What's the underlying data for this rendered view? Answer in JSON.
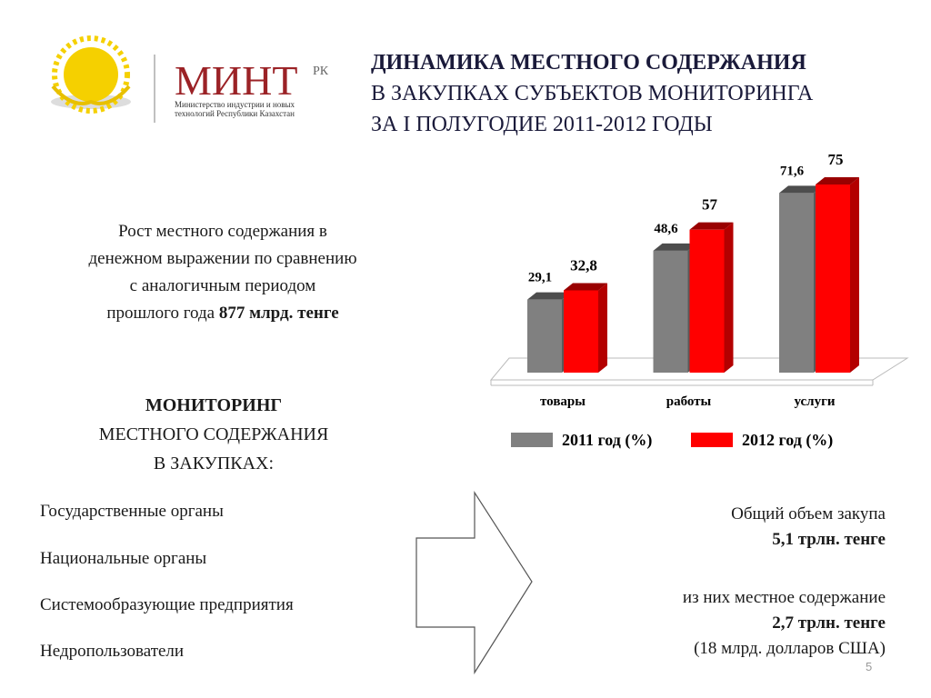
{
  "logo": {
    "name": "МИНТ",
    "suffix": "РК",
    "caption": [
      "Министерство индустрии и новых",
      "технологий Республики Казахстан"
    ]
  },
  "title": [
    "ДИНАМИКА МЕСТНОГО СОДЕРЖАНИЯ",
    "В ЗАКУПКАХ СУБЪЕКТОВ МОНИТОРИНГА",
    "ЗА I ПОЛУГОДИЕ 2011-2012 ГОДЫ"
  ],
  "growth": {
    "lines": [
      "Рост местного содержания в",
      "денежном выражении по сравнению",
      "с аналогичным периодом",
      "прошлого года"
    ],
    "amount": "877 млрд. тенге"
  },
  "monitoring": {
    "heading": "МОНИТОРИНГ",
    "lines": [
      "МЕСТНОГО СОДЕРЖАНИЯ",
      "В ЗАКУПКАХ:"
    ]
  },
  "participants": [
    "Государственные органы",
    "Национальные органы",
    "Системообразующие предприятия",
    "Недропользователи"
  ],
  "totals": [
    {
      "label": "Общий объем закупа",
      "amount": "5,1 трлн. тенге"
    },
    {
      "label": "из них местное содержание",
      "amount": "2,7 трлн. тенге",
      "note": "(18 млрд. долларов США)"
    }
  ],
  "page_number": "5",
  "chart_data": {
    "type": "bar3d",
    "categories": [
      "товары",
      "работы",
      "услуги"
    ],
    "series": [
      {
        "name": "2011 год (%)",
        "color": "#808080",
        "values": [
          29.1,
          48.6,
          71.6
        ],
        "value_labels": [
          "29,1",
          "48,6",
          "71,6"
        ]
      },
      {
        "name": "2012 год (%)",
        "color": "#ff0000",
        "values": [
          32.8,
          57,
          75
        ],
        "value_labels": [
          "32,8",
          "57",
          "75"
        ]
      }
    ],
    "legend": "bottom"
  }
}
